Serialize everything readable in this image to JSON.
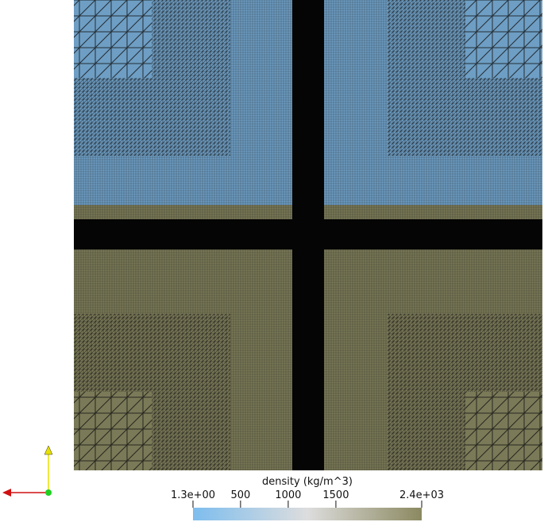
{
  "colorbar": {
    "title": "density (kg/m^3)",
    "range": [
      1.3,
      2400
    ],
    "ticks": [
      {
        "value": 1.3,
        "label": "1.3e+00"
      },
      500,
      1000,
      1500,
      {
        "value": 2400,
        "label": "2.4e+03"
      }
    ],
    "colors": [
      "#7dbdee",
      "#dddddd",
      "#8b8960"
    ]
  }
}
